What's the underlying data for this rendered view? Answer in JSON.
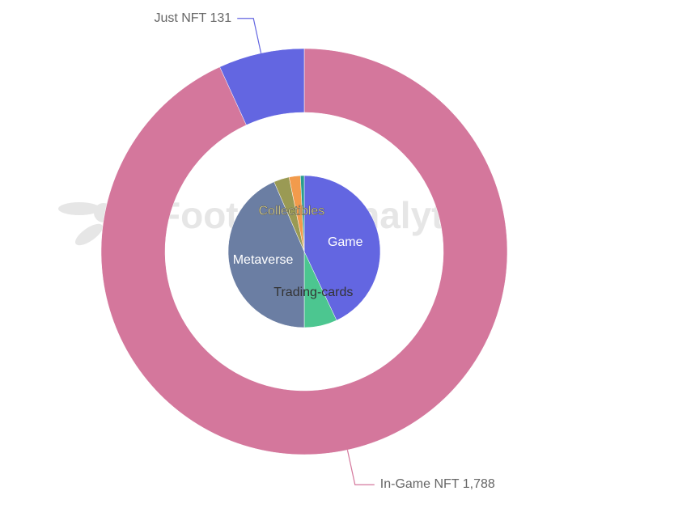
{
  "watermark": "Footprint Analytics",
  "chart_data": [
    {
      "type": "donut",
      "categories": [
        "In-Game NFT",
        "Just NFT"
      ],
      "values": [
        1788,
        131
      ],
      "value_labels": [
        "1,788",
        "131"
      ],
      "colors": [
        "#d4779c",
        "#6366e1"
      ]
    },
    {
      "type": "pie",
      "categories": [
        "Game",
        "Trading-cards",
        "Metaverse",
        "Collectibles",
        null,
        null
      ],
      "values": [
        43,
        7,
        43.5,
        3.3,
        2.4,
        0.8
      ],
      "colors": [
        "#6366e1",
        "#4cc690",
        "#6b7ea3",
        "#9a9a54",
        "#f29b4c",
        "#2a9d8f"
      ]
    }
  ]
}
